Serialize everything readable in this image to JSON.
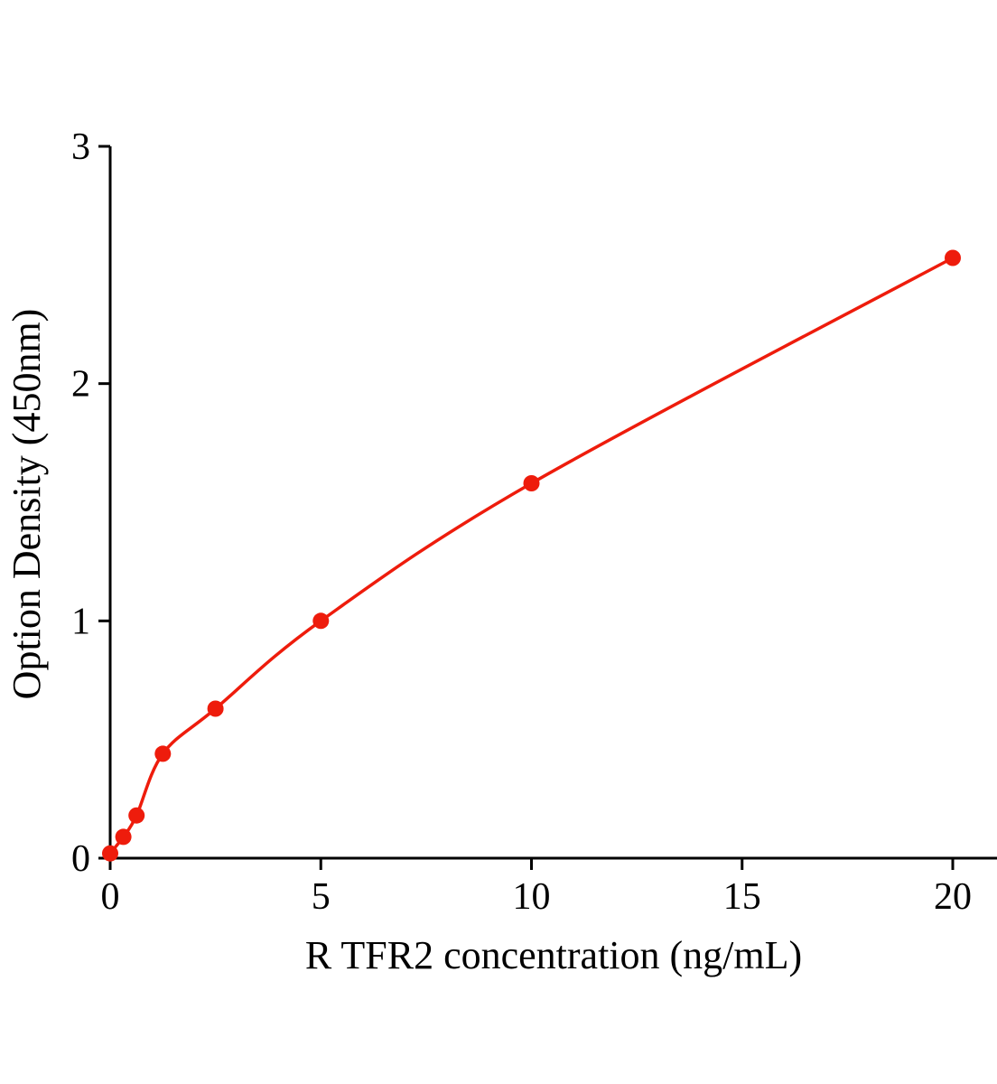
{
  "chart_data": {
    "type": "scatter",
    "title": "",
    "xlabel": "R TFR2 concentration (ng/mL)",
    "ylabel": "Option Density (450nm)",
    "x_ticks": [
      0,
      5,
      10,
      15,
      20
    ],
    "y_ticks": [
      0,
      1,
      2,
      3
    ],
    "xlim": [
      0,
      21.1
    ],
    "ylim": [
      0,
      3
    ],
    "grid": false,
    "legend": "none",
    "series": [
      {
        "name": "standard-curve",
        "color": "#ee1c0c",
        "marker": "circle",
        "line": "smooth",
        "x": [
          0,
          0.3125,
          0.625,
          1.25,
          2.5,
          5,
          10,
          20
        ],
        "y": [
          0.02,
          0.09,
          0.18,
          0.44,
          0.63,
          1.0,
          1.58,
          2.53
        ]
      }
    ]
  },
  "style": {
    "background": "#ffffff",
    "axis_color": "#000000",
    "curve_color": "#ee1c0c",
    "point_color": "#ee1c0c",
    "line_width": 3.5,
    "point_radius": 9
  }
}
